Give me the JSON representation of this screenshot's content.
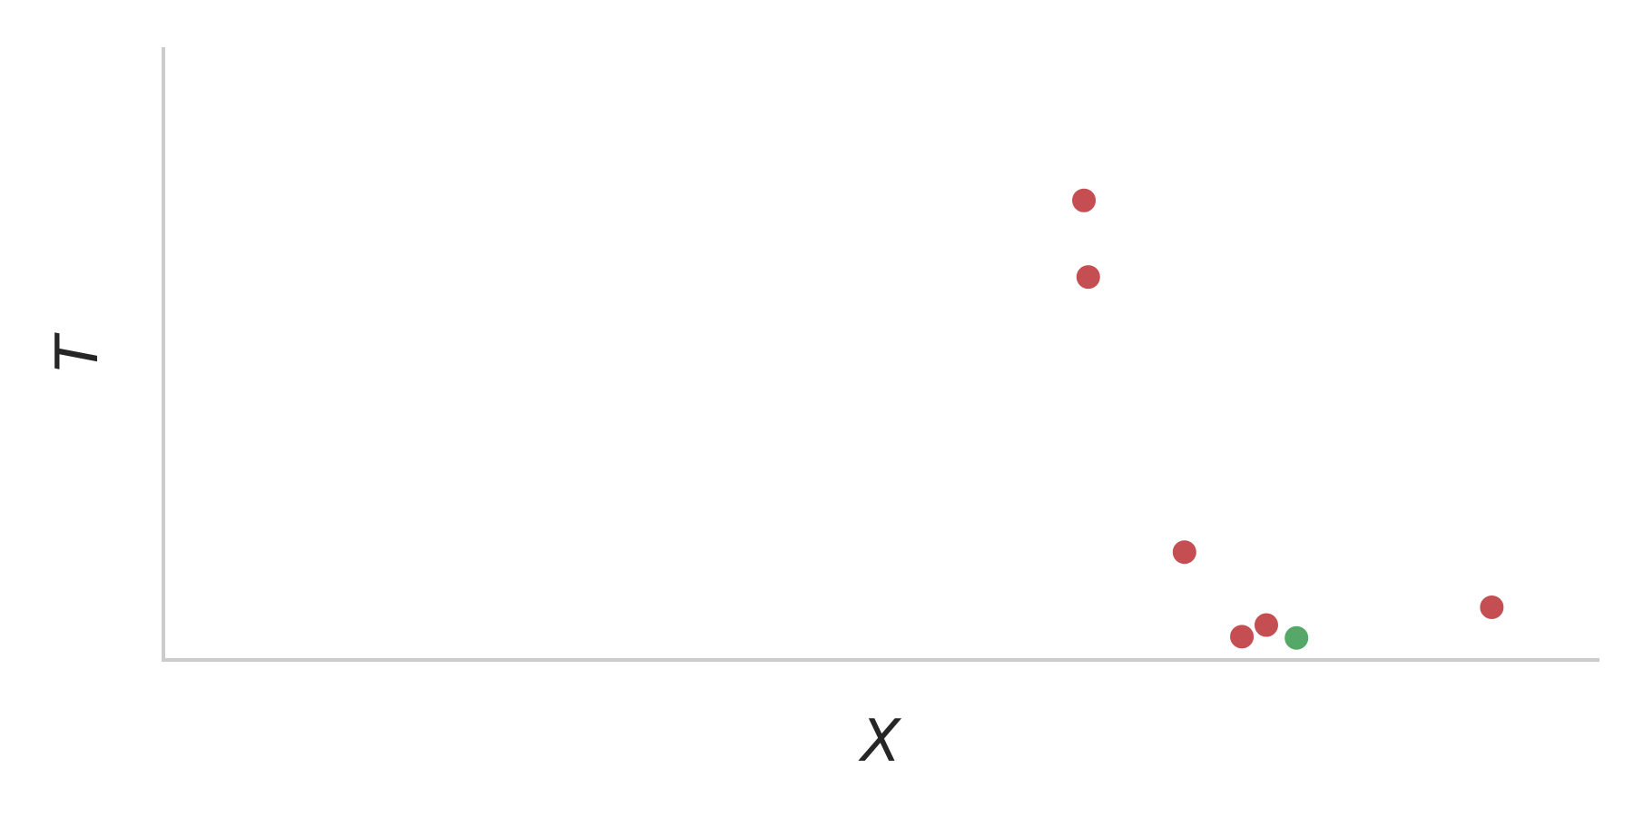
{
  "chart_data": {
    "type": "scatter",
    "xlabel": "X",
    "ylabel": "T",
    "title": "",
    "grid": false,
    "legend": "none",
    "xlim": [
      0,
      1
    ],
    "ylim": [
      0,
      1
    ],
    "series": [
      {
        "color": "#c44e52",
        "points": [
          {
            "x": 0.641,
            "y": 0.75
          },
          {
            "x": 0.644,
            "y": 0.625
          },
          {
            "x": 0.711,
            "y": 0.176
          },
          {
            "x": 0.751,
            "y": 0.038
          },
          {
            "x": 0.768,
            "y": 0.057
          },
          {
            "x": 0.925,
            "y": 0.086
          }
        ]
      },
      {
        "color": "#55a868",
        "points": [
          {
            "x": 0.789,
            "y": 0.036
          }
        ]
      }
    ]
  }
}
